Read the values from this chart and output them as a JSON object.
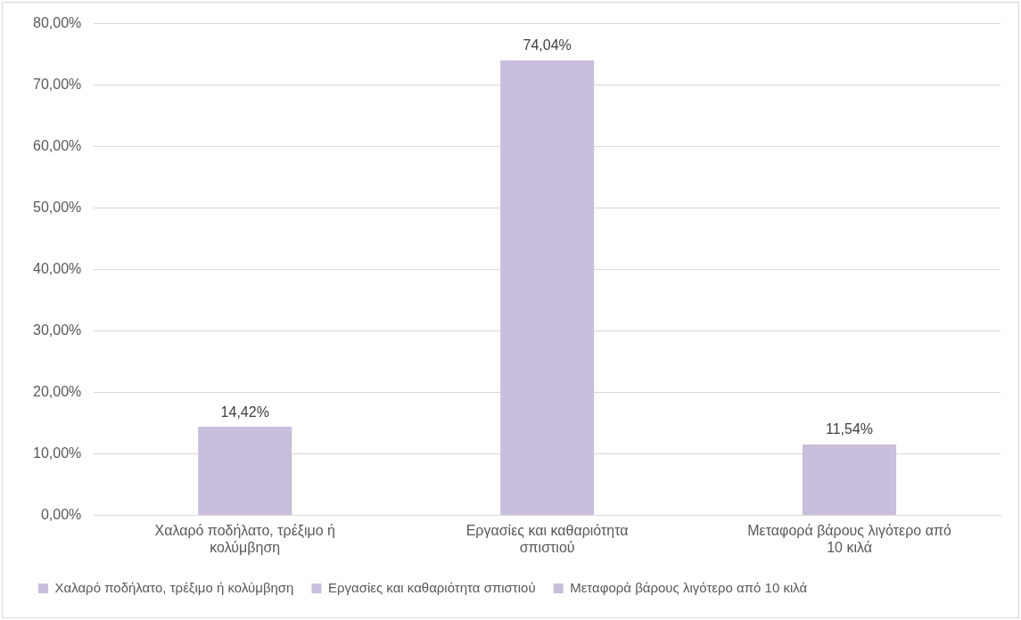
{
  "chart_data": {
    "type": "bar",
    "categories": [
      "Χαλαρό ποδήλατο, τρέξιμο ή κολύμβηση",
      "Εργασίες και καθαριότητα σπιστιού",
      "Μεταφορά βάρους λιγότερο από 10 κιλά"
    ],
    "series": [
      {
        "name": "Χαλαρό ποδήλατο, τρέξιμο ή κολύμβηση",
        "color": "#c9bedb",
        "values": [
          14.42,
          null,
          null
        ],
        "value_labels": [
          "14,42%",
          null,
          null
        ]
      },
      {
        "name": "Εργασίες και καθαριότητα σπιστιού",
        "color": "#c9bedb",
        "values": [
          null,
          74.04,
          null
        ],
        "value_labels": [
          null,
          "74,04%",
          null
        ]
      },
      {
        "name": "Μεταφορά βάρους λιγότερο από 10 κιλά",
        "color": "#c9bedb",
        "values": [
          null,
          null,
          11.54
        ],
        "value_labels": [
          null,
          null,
          "11,54%"
        ]
      }
    ],
    "ylim": [
      0,
      80
    ],
    "yticks": [
      {
        "value": 0,
        "label": "0,00%"
      },
      {
        "value": 10,
        "label": "10,00%"
      },
      {
        "value": 20,
        "label": "20,00%"
      },
      {
        "value": 30,
        "label": "30,00%"
      },
      {
        "value": 40,
        "label": "40,00%"
      },
      {
        "value": 50,
        "label": "50,00%"
      },
      {
        "value": 60,
        "label": "60,00%"
      },
      {
        "value": 70,
        "label": "70,00%"
      },
      {
        "value": 80,
        "label": "80,00%"
      }
    ],
    "grid": "y",
    "legend": "bottom"
  }
}
